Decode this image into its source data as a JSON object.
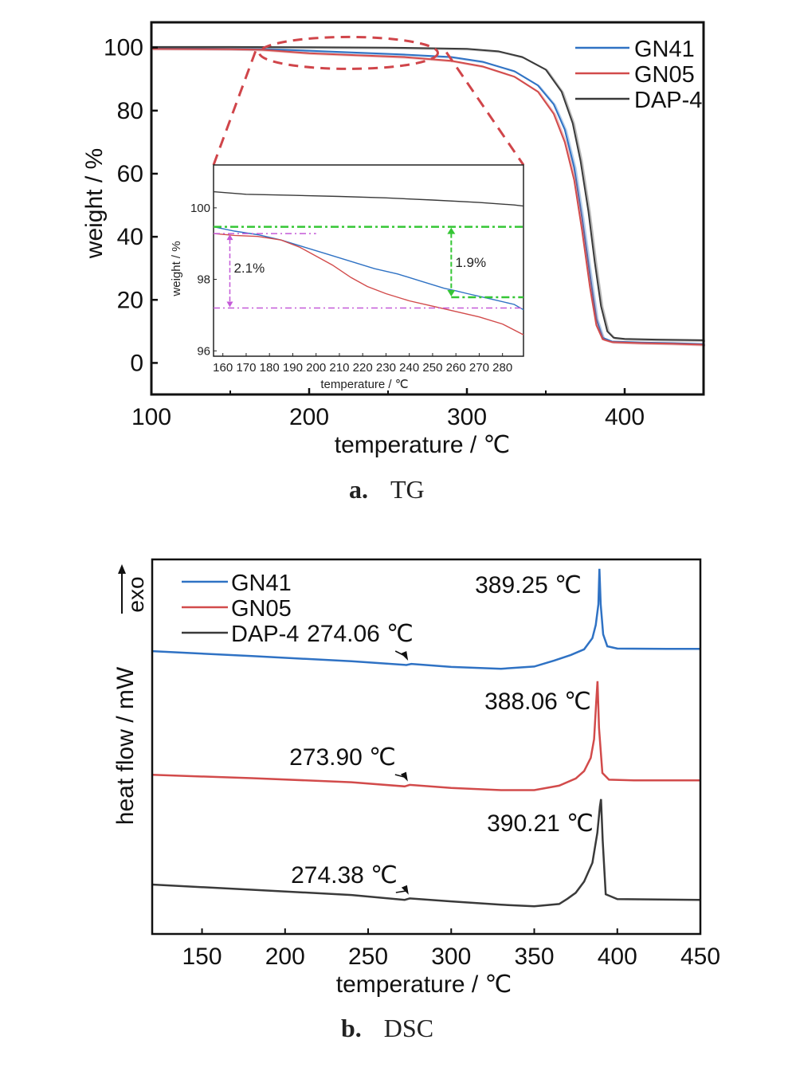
{
  "colors": {
    "gn41": "#2f72c4",
    "gn05": "#d24b4b",
    "dap4": "#3a3a3a",
    "zoom": "#d0454a",
    "green": "#35c635",
    "purple": "#c45ad8"
  },
  "panel_a": {
    "caption_letter": "a.",
    "caption_text": "TG",
    "delta_green": "1.9%",
    "delta_purple": "2.1%"
  },
  "panel_b": {
    "caption_letter": "b.",
    "caption_text": "DSC",
    "exo_label": "exo"
  },
  "chart_data": [
    {
      "type": "line",
      "name": "TG",
      "xlabel": "temperature / ℃",
      "ylabel": "weight / %",
      "xlim": [
        100,
        450
      ],
      "ylim": [
        -10,
        108
      ],
      "x_ticks": [
        100,
        200,
        300,
        400
      ],
      "y_ticks": [
        0,
        20,
        40,
        60,
        80,
        100
      ],
      "grid": false,
      "legend_position": "top-right",
      "series": [
        {
          "name": "GN41",
          "color_key": "gn41",
          "x": [
            100,
            150,
            170,
            200,
            230,
            260,
            290,
            310,
            330,
            345,
            355,
            362,
            368,
            373,
            378,
            382,
            386,
            392,
            410,
            430,
            450
          ],
          "y": [
            99.8,
            99.6,
            99.5,
            99.0,
            98.4,
            97.8,
            97.0,
            95.5,
            92.5,
            88,
            82,
            74,
            62,
            46,
            28,
            14,
            8,
            6.8,
            6.5,
            6.3,
            6.0
          ]
        },
        {
          "name": "GN05",
          "color_key": "gn05",
          "x": [
            100,
            150,
            170,
            200,
            230,
            260,
            290,
            310,
            330,
            345,
            355,
            362,
            368,
            373,
            378,
            382,
            386,
            392,
            410,
            430,
            450
          ],
          "y": [
            99.6,
            99.5,
            99.3,
            98.2,
            97.6,
            97.0,
            95.8,
            94.0,
            90.8,
            86,
            79,
            70,
            58,
            42,
            24,
            12,
            7.5,
            6.6,
            6.3,
            6.1,
            5.8
          ]
        },
        {
          "name": "DAP-4",
          "color_key": "dap4",
          "x": [
            100,
            150,
            200,
            250,
            300,
            320,
            335,
            350,
            360,
            367,
            372,
            377,
            381,
            385,
            389,
            393,
            400,
            420,
            450
          ],
          "y": [
            100.2,
            100.2,
            100.1,
            100.0,
            99.6,
            98.8,
            97.0,
            93,
            86,
            76,
            64,
            48,
            32,
            18,
            10,
            8,
            7.6,
            7.4,
            7.2
          ]
        }
      ]
    },
    {
      "type": "line",
      "name": "TG inset",
      "xlabel": "temperature / ℃",
      "ylabel": "weight / %",
      "xlim": [
        156,
        289
      ],
      "ylim": [
        95.85,
        101.2
      ],
      "x_ticks": [
        160,
        170,
        180,
        190,
        200,
        210,
        220,
        230,
        240,
        250,
        260,
        270,
        280
      ],
      "y_ticks": [
        96,
        98,
        100
      ],
      "series": [
        {
          "name": "GN41",
          "color_key": "gn41",
          "x": [
            156,
            165,
            175,
            185,
            195,
            205,
            215,
            225,
            235,
            245,
            255,
            260,
            265,
            275,
            285,
            289
          ],
          "y": [
            99.47,
            99.35,
            99.25,
            99.1,
            98.9,
            98.7,
            98.5,
            98.3,
            98.15,
            97.95,
            97.75,
            97.68,
            97.6,
            97.45,
            97.3,
            97.15
          ]
        },
        {
          "name": "GN05",
          "color_key": "gn05",
          "x": [
            156,
            165,
            175,
            185,
            193,
            200,
            207,
            215,
            222,
            230,
            240,
            250,
            260,
            270,
            280,
            289
          ],
          "y": [
            99.28,
            99.23,
            99.2,
            99.1,
            98.9,
            98.65,
            98.4,
            98.05,
            97.8,
            97.6,
            97.4,
            97.25,
            97.1,
            96.95,
            96.75,
            96.45
          ]
        },
        {
          "name": "DAP-4",
          "color_key": "dap4",
          "x": [
            156,
            170,
            190,
            210,
            230,
            250,
            270,
            285,
            289
          ],
          "y": [
            100.45,
            100.38,
            100.35,
            100.32,
            100.28,
            100.22,
            100.15,
            100.08,
            100.05
          ]
        }
      ],
      "annotations": [
        {
          "text": "1.9%",
          "x": 258,
          "y_from": 99.47,
          "y_to": 97.5
        },
        {
          "text": "2.1%",
          "x": 163,
          "y_from": 99.28,
          "y_to": 97.2
        }
      ]
    },
    {
      "type": "line",
      "name": "DSC",
      "xlabel": "temperature / ℃",
      "ylabel": "heat flow / mW",
      "xlim": [
        120,
        450
      ],
      "x_ticks": [
        150,
        200,
        250,
        300,
        350,
        400,
        450
      ],
      "ylim": [
        0,
        100
      ],
      "legend_position": "top-left",
      "series": [
        {
          "name": "GN41",
          "color_key": "gn41",
          "x": [
            120,
            180,
            240,
            273,
            276,
            300,
            330,
            350,
            362,
            372,
            380,
            385,
            387,
            388.6,
            389.25,
            390,
            391.5,
            394,
            400,
            430,
            450
          ],
          "y": [
            75.5,
            74.2,
            72.8,
            71.8,
            72.1,
            71.3,
            70.8,
            71.4,
            73,
            74.5,
            76,
            79,
            82.5,
            88,
            97.5,
            88,
            80,
            76.8,
            76.2,
            76.1,
            76.1
          ]
        },
        {
          "name": "GN05",
          "color_key": "gn05",
          "x": [
            120,
            180,
            240,
            272,
            275,
            300,
            330,
            350,
            365,
            375,
            380,
            384,
            386,
            387.3,
            388.06,
            389,
            391,
            395,
            410,
            450
          ],
          "y": [
            42.5,
            41.6,
            40.5,
            39.4,
            39.8,
            39.0,
            38.4,
            38.4,
            39.6,
            41.5,
            43.5,
            47,
            52,
            62,
            67.5,
            55,
            43,
            41.2,
            41,
            41
          ]
        },
        {
          "name": "DAP-4",
          "color_key": "dap4",
          "x": [
            120,
            180,
            240,
            272,
            275,
            300,
            330,
            350,
            365,
            370,
            375,
            380,
            385,
            388,
            389.5,
            390.21,
            391.2,
            393,
            400,
            450
          ],
          "y": [
            13.2,
            11.8,
            10.4,
            9.1,
            9.5,
            8.7,
            7.8,
            7.4,
            8.0,
            9.4,
            11,
            14,
            19,
            27,
            34,
            36,
            25,
            10.6,
            9.3,
            9.1
          ]
        }
      ],
      "annotations": [
        {
          "text": "389.25 ℃",
          "series": "GN41",
          "x": 389.25
        },
        {
          "text": "274.06 ℃",
          "series": "GN41",
          "x": 274.06
        },
        {
          "text": "388.06 ℃",
          "series": "GN05",
          "x": 388.06
        },
        {
          "text": "273.90 ℃",
          "series": "GN05",
          "x": 273.9
        },
        {
          "text": "390.21 ℃",
          "series": "DAP-4",
          "x": 390.21
        },
        {
          "text": "274.38 ℃",
          "series": "DAP-4",
          "x": 274.38
        }
      ]
    }
  ]
}
